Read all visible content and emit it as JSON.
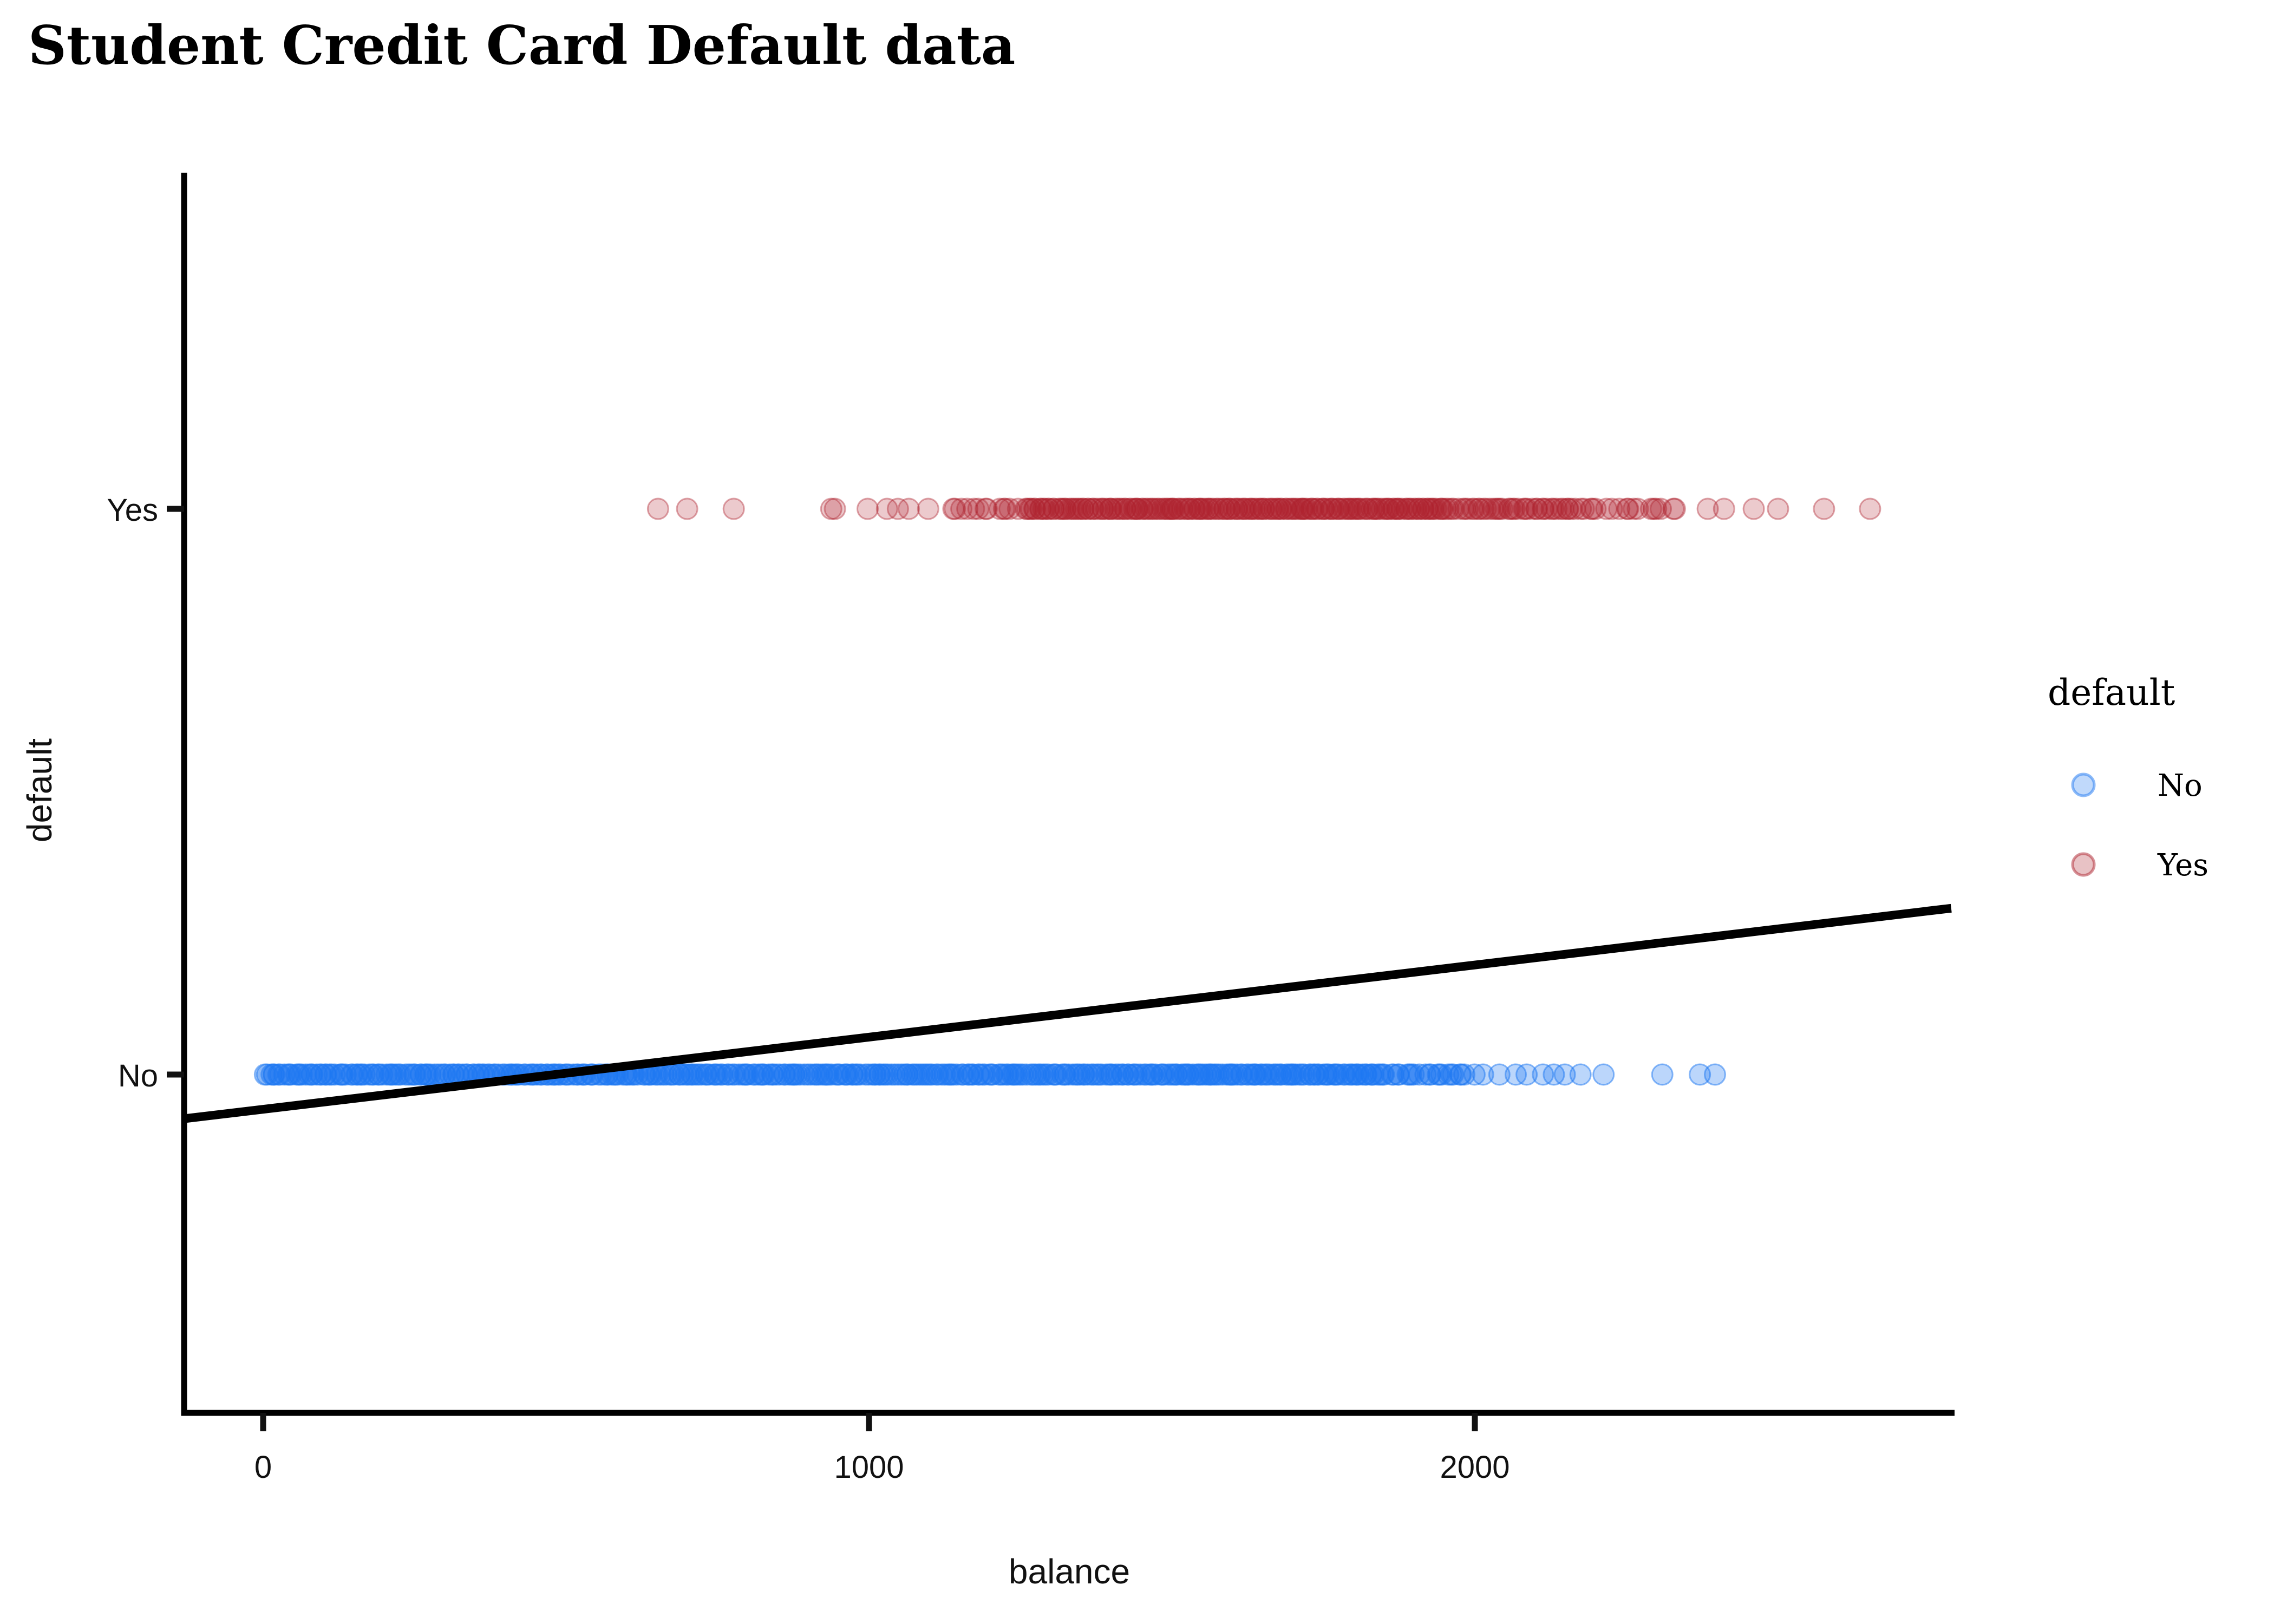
{
  "page": {
    "title": "Student Credit Card Default data"
  },
  "chart_data": {
    "type": "scatter",
    "title": "Student Credit Card Default data",
    "xlabel": "balance",
    "ylabel": "default",
    "x_ticks": [
      "0",
      "1000",
      "2000"
    ],
    "x_tick_values": [
      0,
      1000,
      2000
    ],
    "x_range": [
      -130,
      2790
    ],
    "y_categories": [
      "No",
      "Yes"
    ],
    "grid": "off",
    "legend": {
      "title": "default",
      "position": "right",
      "entries": [
        {
          "label": "No",
          "color": "#1e77f2"
        },
        {
          "label": "Yes",
          "color": "#ae232f"
        }
      ]
    },
    "series": [
      {
        "name": "No",
        "level": 0,
        "color": "#1e77f2",
        "alpha": 0.3,
        "marker_radius": 19,
        "bands": [
          {
            "from": 0,
            "to": 1500,
            "count": 330
          },
          {
            "from": 1500,
            "to": 1850,
            "count": 85
          },
          {
            "from": 1850,
            "to": 1990,
            "count": 22
          }
        ],
        "points": [
          2000,
          2014,
          2041,
          2068,
          2086,
          2113,
          2131,
          2149,
          2175,
          2213,
          2310,
          2372,
          2397
        ]
      },
      {
        "name": "Yes",
        "level": 1,
        "color": "#ae232f",
        "alpha": 0.24,
        "marker_radius": 19,
        "bands": [
          {
            "from": 1130,
            "to": 1260,
            "count": 14
          },
          {
            "from": 1260,
            "to": 1420,
            "count": 42
          },
          {
            "from": 1420,
            "to": 1950,
            "count": 150
          },
          {
            "from": 1950,
            "to": 2180,
            "count": 45
          },
          {
            "from": 2180,
            "to": 2340,
            "count": 16
          }
        ],
        "points": [
          652,
          700,
          777,
          938,
          944,
          998,
          1030,
          1048,
          1066,
          1098,
          2385,
          2412,
          2461,
          2501,
          2577,
          2653
        ]
      }
    ],
    "trend_line": {
      "x": [
        -130,
        2787
      ],
      "y": [
        -0.078,
        0.294
      ],
      "color": "#000000",
      "width": 16
    }
  }
}
